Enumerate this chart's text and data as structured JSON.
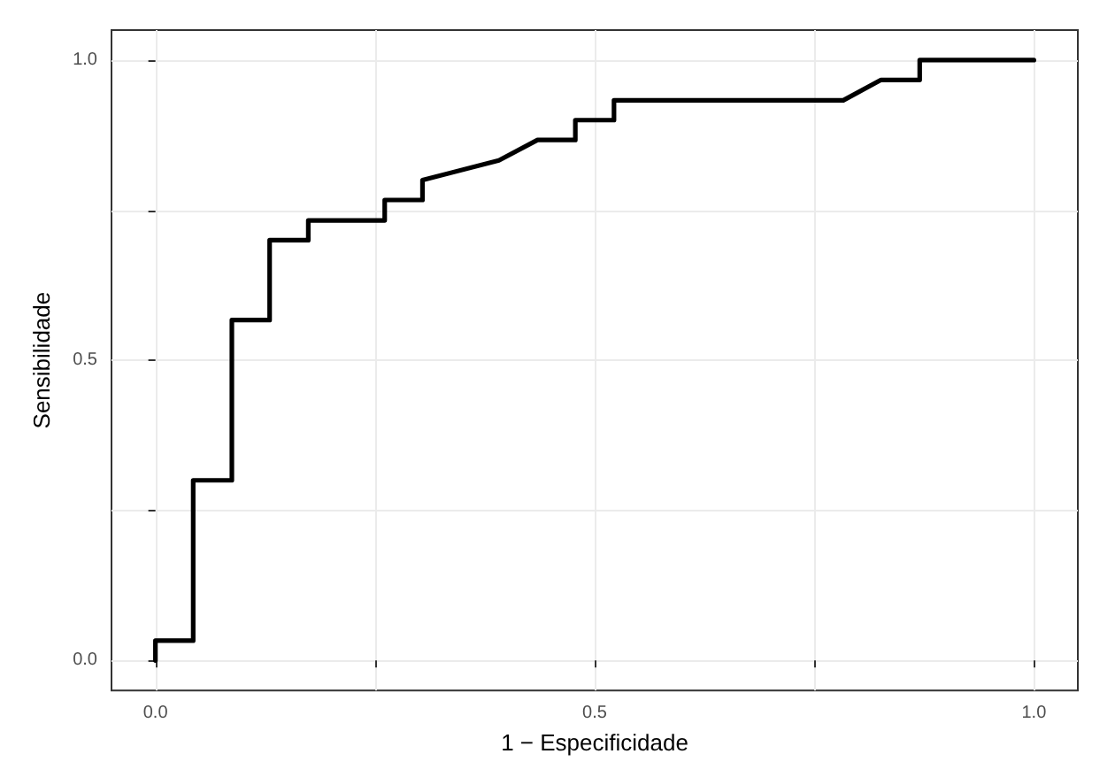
{
  "chart_data": {
    "type": "line",
    "xlabel": "1 − Especificidade",
    "ylabel": "Sensibilidade",
    "x": [
      0,
      0,
      0.043,
      0.043,
      0.087,
      0.087,
      0.13,
      0.13,
      0.174,
      0.174,
      0.261,
      0.261,
      0.304,
      0.304,
      0.391,
      0.435,
      0.478,
      0.478,
      0.522,
      0.522,
      0.783,
      0.826,
      0.87,
      0.87,
      1
    ],
    "series": [
      {
        "color": "#000000",
        "values": [
          0,
          0.033,
          0.033,
          0.3,
          0.3,
          0.567,
          0.567,
          0.7,
          0.7,
          0.733,
          0.733,
          0.767,
          0.767,
          0.8,
          0.833,
          0.867,
          0.867,
          0.9,
          0.9,
          0.933,
          0.933,
          0.967,
          0.967,
          1,
          1
        ]
      }
    ],
    "xlim": [
      -0.05,
      1.05
    ],
    "ylim": [
      -0.05,
      1.05
    ],
    "xticks": [
      {
        "value": 0,
        "label": "0.0"
      },
      {
        "value": 0.25,
        "label": null
      },
      {
        "value": 0.5,
        "label": "0.5"
      },
      {
        "value": 0.75,
        "label": null
      },
      {
        "value": 1,
        "label": "1.0"
      }
    ],
    "yticks": [
      {
        "value": 0,
        "label": "0.0"
      },
      {
        "value": 0.25,
        "label": null
      },
      {
        "value": 0.5,
        "label": "0.5"
      },
      {
        "value": 0.75,
        "label": null
      },
      {
        "value": 1,
        "label": "1.0"
      }
    ],
    "grid": true,
    "marker": "none",
    "line_style": "solid"
  }
}
